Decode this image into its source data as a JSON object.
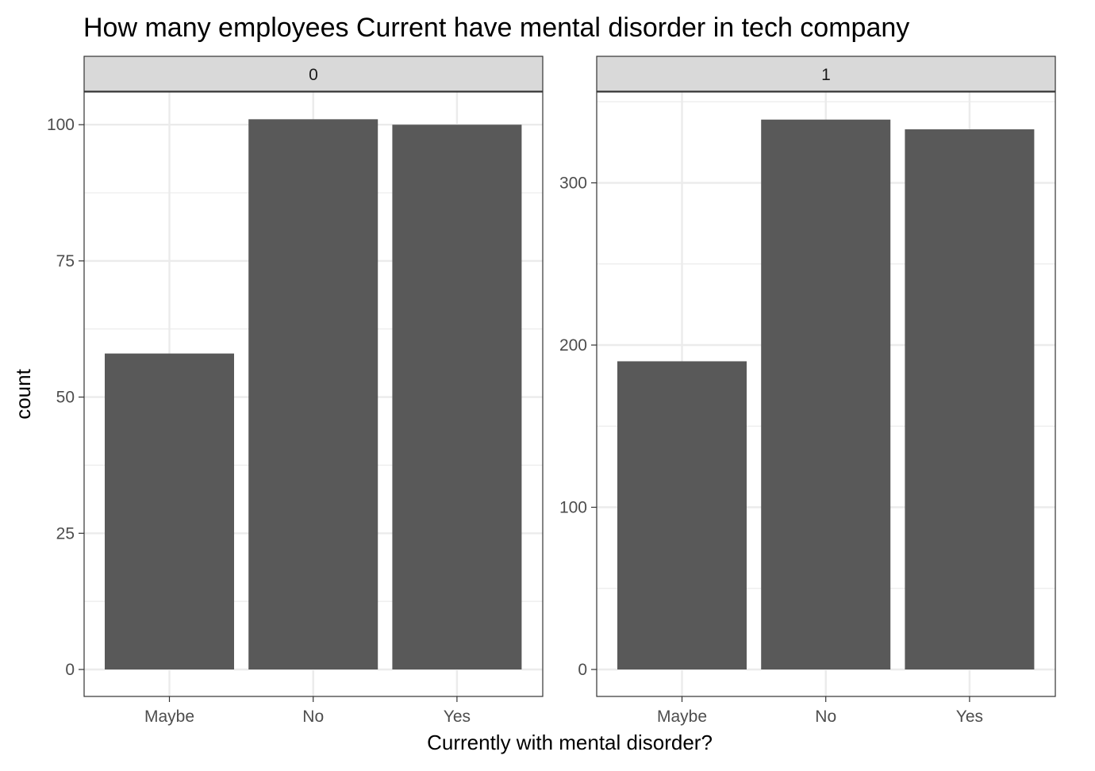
{
  "chart_data": {
    "type": "bar",
    "title": "How many employees Current have mental disorder in tech company",
    "xlabel": "Currently with mental disorder?",
    "ylabel": "count",
    "categories": [
      "Maybe",
      "No",
      "Yes"
    ],
    "grid": true,
    "colors": {
      "bar": "#595959",
      "strip_bg": "#d9d9d9",
      "grid": "#ebebeb",
      "panel_border": "#333333"
    },
    "facets": [
      {
        "label": "0",
        "values": [
          58,
          101,
          100
        ],
        "ylim": [
          0,
          106
        ],
        "yticks": [
          0,
          25,
          50,
          75,
          100
        ]
      },
      {
        "label": "1",
        "values": [
          190,
          339,
          333
        ],
        "ylim": [
          0,
          356
        ],
        "yticks": [
          0,
          100,
          200,
          300
        ]
      }
    ]
  }
}
